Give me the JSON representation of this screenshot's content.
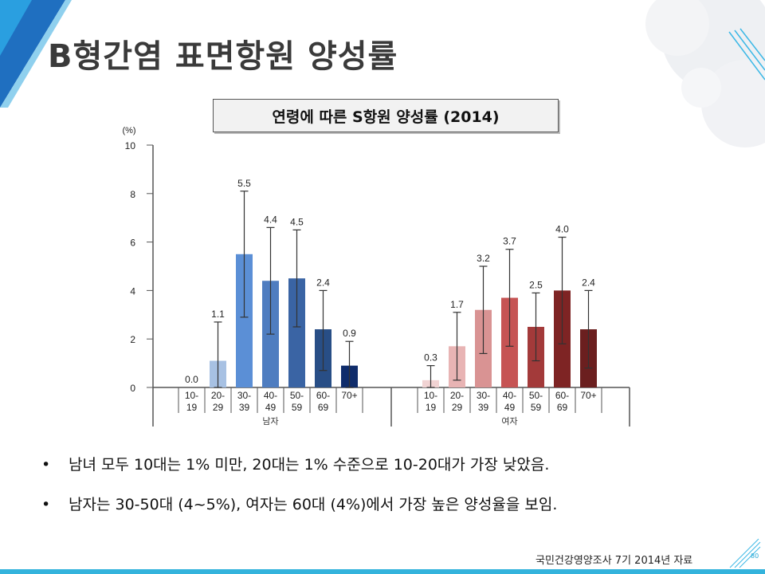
{
  "slide": {
    "title": "B형간염 표면항원 양성률",
    "chart_title": "연령에 따른 S항원 양성률 (2014)",
    "bullets": [
      "남녀 모두 10대는 1% 미만, 20대는 1% 수준으로 10-20대가 가장 낮았음.",
      "남자는 30-50대 (4~5%), 여자는 60대 (4%)에서 가장 높은 양성율을 보임."
    ],
    "bullet_symbol": "•",
    "source": "국민건강영양조사 7기 2014년 자료",
    "page_number": "80"
  },
  "chart_data": {
    "type": "bar",
    "title": "연령에 따른 S항원 양성률 (2014)",
    "ylabel": "(%)",
    "ylim": [
      0,
      10
    ],
    "yticks": [
      "0",
      "2",
      "4",
      "6",
      "8",
      "10"
    ],
    "error_bars": true,
    "grid": false,
    "groups": [
      {
        "name": "남자",
        "categories": [
          [
            "10-",
            "19"
          ],
          [
            "20-",
            "29"
          ],
          [
            "30-",
            "39"
          ],
          [
            "40-",
            "49"
          ],
          [
            "50-",
            "59"
          ],
          [
            "60-",
            "69"
          ],
          [
            "70+",
            ""
          ]
        ],
        "values": [
          0.0,
          1.1,
          5.5,
          4.4,
          4.5,
          2.4,
          0.9
        ],
        "labels": [
          "0.0",
          "1.1",
          "5.5",
          "4.4",
          "4.5",
          "2.4",
          "0.9"
        ],
        "ci_low": [
          0.0,
          0.0,
          2.9,
          2.2,
          2.5,
          0.7,
          0.0
        ],
        "ci_high": [
          0.0,
          2.7,
          8.1,
          6.6,
          6.5,
          4.0,
          1.9
        ],
        "colors": [
          "#ffffff",
          "#a7c1e3",
          "#5b8fd6",
          "#4f7dc0",
          "#3a64a4",
          "#284e86",
          "#0f2c6b"
        ]
      },
      {
        "name": "여자",
        "categories": [
          [
            "10-",
            "19"
          ],
          [
            "20-",
            "29"
          ],
          [
            "30-",
            "39"
          ],
          [
            "40-",
            "49"
          ],
          [
            "50-",
            "59"
          ],
          [
            "60-",
            "69"
          ],
          [
            "70+",
            ""
          ]
        ],
        "values": [
          0.3,
          1.7,
          3.2,
          3.7,
          2.5,
          4.0,
          2.4
        ],
        "labels": [
          "0.3",
          "1.7",
          "3.2",
          "3.7",
          "2.5",
          "4.0",
          "2.4"
        ],
        "ci_low": [
          0.0,
          0.3,
          1.4,
          1.7,
          1.1,
          1.8,
          0.8
        ],
        "ci_high": [
          0.9,
          3.1,
          5.0,
          5.7,
          3.9,
          6.2,
          4.0
        ],
        "colors": [
          "#f1d3d3",
          "#e8b4b4",
          "#d99393",
          "#c65454",
          "#a33a3a",
          "#7e2424",
          "#6b1f1f"
        ]
      }
    ]
  }
}
